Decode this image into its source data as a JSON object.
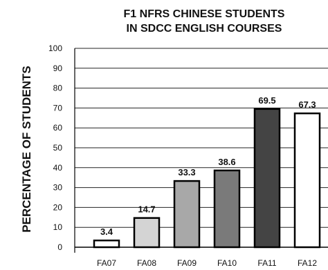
{
  "chart_data": {
    "type": "bar",
    "title_lines": [
      "F1 NFRS CHINESE STUDENTS",
      "IN SDCC ENGLISH COURSES"
    ],
    "ylabel": "PERCENTAGE OF STUDENTS",
    "xlabel": "",
    "ylim": [
      0,
      100
    ],
    "yticks": [
      0,
      10,
      20,
      30,
      40,
      50,
      60,
      70,
      80,
      90,
      100
    ],
    "categories": [
      "FA07",
      "FA08",
      "FA09",
      "FA10",
      "FA11",
      "FA12"
    ],
    "values": [
      3.4,
      14.7,
      33.3,
      38.6,
      69.5,
      67.3
    ],
    "value_labels": [
      "3.4",
      "14.7",
      "33.3",
      "38.6",
      "69.5",
      "67.3"
    ],
    "bar_colors": [
      "#ffffff",
      "#d4d4d4",
      "#a8a8a8",
      "#7a7a7a",
      "#444444",
      "#ffffff"
    ],
    "grid": true,
    "legend": "none"
  }
}
